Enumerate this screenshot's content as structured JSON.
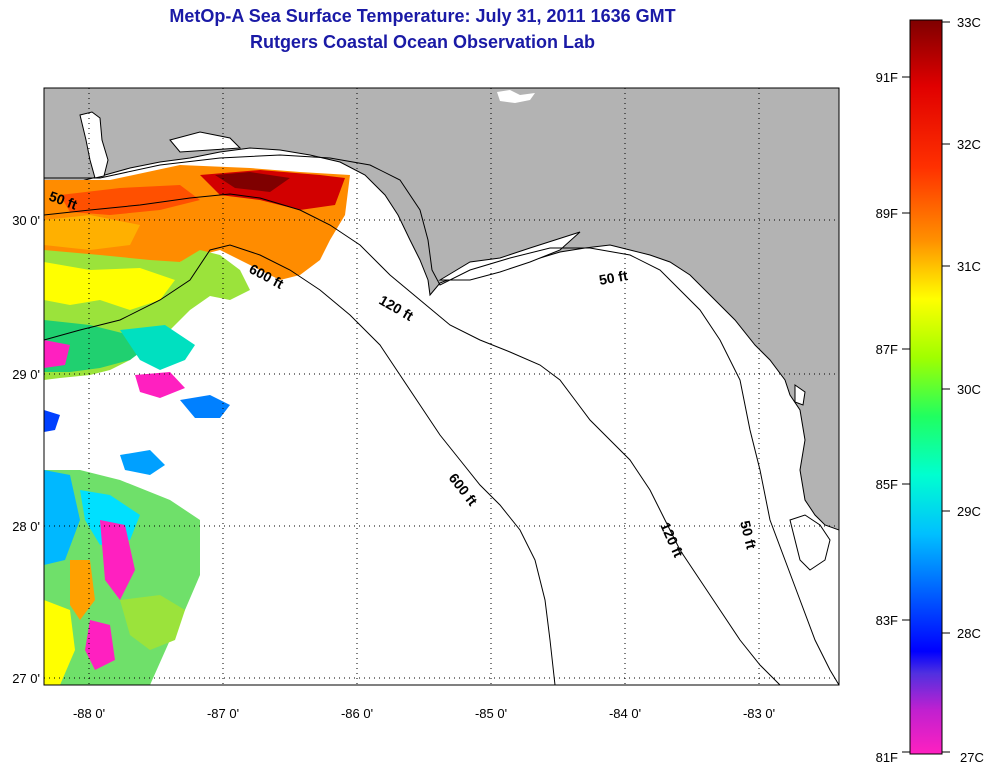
{
  "title_line1": "MetOp-A Sea Surface Temperature:  July 31, 2011 1636 GMT",
  "title_line2": "Rutgers Coastal Ocean Observation Lab",
  "map": {
    "lat_labels": [
      "30 0'",
      "29 0'",
      "28 0'",
      "27 0'"
    ],
    "lon_labels": [
      "-88 0'",
      "-87 0'",
      "-86 0'",
      "-85 0'",
      "-84 0'",
      "-83 0'"
    ],
    "land_color": "#b3b3b3",
    "water_color": "#ffffff",
    "contour_labels": [
      {
        "text": "50 ft"
      },
      {
        "text": "600 ft"
      },
      {
        "text": "120 ft"
      },
      {
        "text": "50 ft"
      },
      {
        "text": "600 ft"
      },
      {
        "text": "120 ft"
      },
      {
        "text": "50 ft"
      }
    ]
  },
  "colorbar": {
    "celsius_labels": [
      "33C",
      "32C",
      "31C",
      "30C",
      "29C",
      "28C",
      "27C"
    ],
    "fahrenheit_labels": [
      "91F",
      "89F",
      "87F",
      "85F",
      "83F",
      "81F"
    ]
  },
  "colors": {
    "title": "#1a1aa6",
    "scale": [
      "#7f0000",
      "#ff0000",
      "#ff8c00",
      "#ffff00",
      "#7fff00",
      "#00ff80",
      "#00ffff",
      "#0080ff",
      "#0000ff",
      "#8000c0",
      "#ff00ff"
    ]
  }
}
